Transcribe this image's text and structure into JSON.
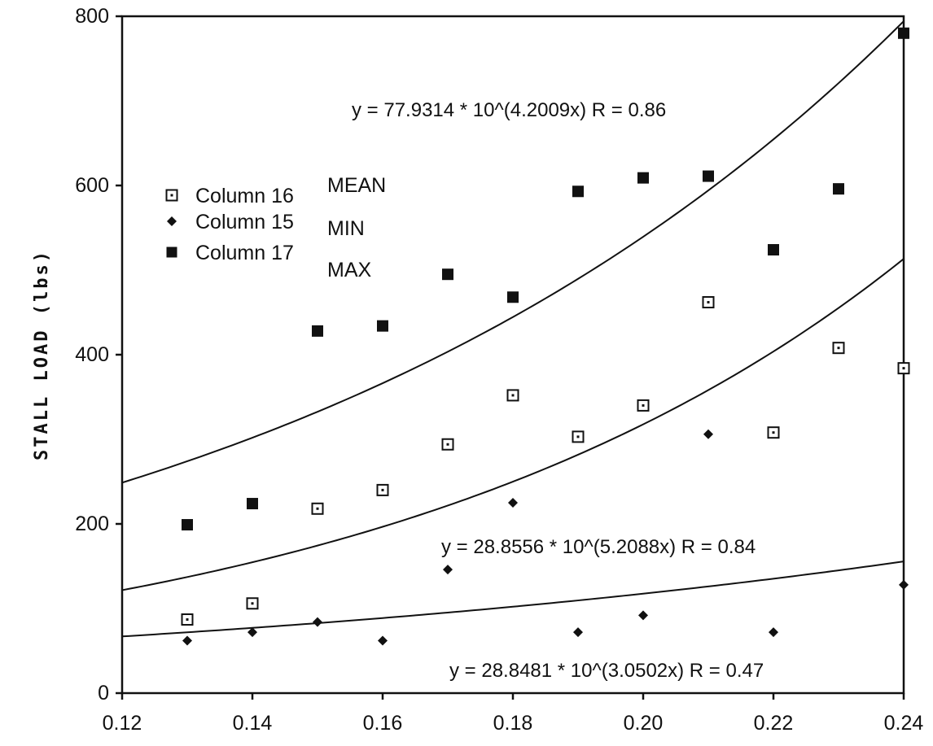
{
  "chart_data": {
    "type": "scatter",
    "ylabel": "STALL LOAD (lbs)",
    "xlabel": "",
    "xlim": [
      0.12,
      0.24
    ],
    "ylim": [
      0,
      800
    ],
    "x_ticks": [
      {
        "value": 0.12,
        "label": "0.12"
      },
      {
        "value": 0.14,
        "label": "0.14"
      },
      {
        "value": 0.16,
        "label": "0.16"
      },
      {
        "value": 0.18,
        "label": "0.18"
      },
      {
        "value": 0.2,
        "label": "0.20"
      },
      {
        "value": 0.22,
        "label": "0.22"
      },
      {
        "value": 0.24,
        "label": "0.24"
      }
    ],
    "y_ticks": [
      {
        "value": 0,
        "label": "0"
      },
      {
        "value": 200,
        "label": "200"
      },
      {
        "value": 400,
        "label": "400"
      },
      {
        "value": 600,
        "label": "600"
      },
      {
        "value": 800,
        "label": "800"
      }
    ],
    "grid": false,
    "legend_position": "upper-left",
    "series": [
      {
        "name": "Column 16",
        "annotation": "MEAN",
        "marker": "open-square",
        "points": [
          {
            "x": 0.13,
            "y": 87
          },
          {
            "x": 0.14,
            "y": 106
          },
          {
            "x": 0.15,
            "y": 218
          },
          {
            "x": 0.16,
            "y": 240
          },
          {
            "x": 0.17,
            "y": 294
          },
          {
            "x": 0.18,
            "y": 352
          },
          {
            "x": 0.19,
            "y": 303
          },
          {
            "x": 0.2,
            "y": 340
          },
          {
            "x": 0.21,
            "y": 462
          },
          {
            "x": 0.22,
            "y": 308
          },
          {
            "x": 0.23,
            "y": 408
          },
          {
            "x": 0.24,
            "y": 384
          }
        ]
      },
      {
        "name": "Column 15",
        "annotation": "MIN",
        "marker": "diamond",
        "points": [
          {
            "x": 0.13,
            "y": 62
          },
          {
            "x": 0.14,
            "y": 72
          },
          {
            "x": 0.15,
            "y": 84
          },
          {
            "x": 0.16,
            "y": 62
          },
          {
            "x": 0.17,
            "y": 146
          },
          {
            "x": 0.18,
            "y": 225
          },
          {
            "x": 0.19,
            "y": 72
          },
          {
            "x": 0.2,
            "y": 92
          },
          {
            "x": 0.21,
            "y": 306
          },
          {
            "x": 0.22,
            "y": 72
          },
          {
            "x": 0.24,
            "y": 128
          }
        ]
      },
      {
        "name": "Column 17",
        "annotation": "MAX",
        "marker": "filled-square",
        "points": [
          {
            "x": 0.13,
            "y": 199
          },
          {
            "x": 0.14,
            "y": 224
          },
          {
            "x": 0.15,
            "y": 428
          },
          {
            "x": 0.16,
            "y": 434
          },
          {
            "x": 0.17,
            "y": 495
          },
          {
            "x": 0.18,
            "y": 468
          },
          {
            "x": 0.19,
            "y": 593
          },
          {
            "x": 0.2,
            "y": 609
          },
          {
            "x": 0.21,
            "y": 611
          },
          {
            "x": 0.22,
            "y": 524
          },
          {
            "x": 0.23,
            "y": 596
          },
          {
            "x": 0.24,
            "y": 780
          }
        ]
      }
    ],
    "fits": [
      {
        "equation": "y = 77.9314 * 10^(4.2009x)  R = 0.86",
        "a": 77.9314,
        "b": 4.2009
      },
      {
        "equation": "y = 28.8556 * 10^(5.2088x)  R = 0.84",
        "a": 28.8556,
        "b": 5.2088
      },
      {
        "equation": "y = 28.8481 * 10^(3.0502x)  R = 0.47",
        "a": 28.8481,
        "b": 3.0502
      }
    ]
  }
}
